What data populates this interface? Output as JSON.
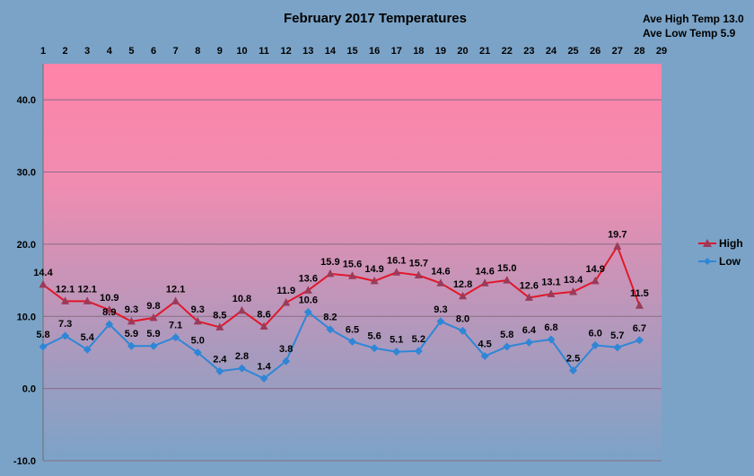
{
  "chart_data": {
    "type": "line",
    "title": "February 2017 Temperatures",
    "annotations": [
      "Ave High Temp 13.0",
      "Ave Low Temp 5.9"
    ],
    "x": [
      1,
      2,
      3,
      4,
      5,
      6,
      7,
      8,
      9,
      10,
      11,
      12,
      13,
      14,
      15,
      16,
      17,
      18,
      19,
      20,
      21,
      22,
      23,
      24,
      25,
      26,
      27,
      28
    ],
    "x_ticks": [
      "1",
      "2",
      "3",
      "4",
      "5",
      "6",
      "7",
      "8",
      "9",
      "10",
      "11",
      "12",
      "13",
      "14",
      "15",
      "16",
      "17",
      "18",
      "19",
      "20",
      "21",
      "22",
      "23",
      "24",
      "25",
      "26",
      "27",
      "28",
      "29"
    ],
    "xlim": [
      1,
      29
    ],
    "ylim": [
      -10,
      45
    ],
    "y_ticks": [
      "-10.0",
      "0.0",
      "10.0",
      "20.0",
      "30.0",
      "40.0"
    ],
    "grid": true,
    "legend_position": "right",
    "series": [
      {
        "name": "High",
        "color": "#e0182a",
        "marker": "triangle",
        "values": [
          14.4,
          12.1,
          12.1,
          10.9,
          9.3,
          9.8,
          12.1,
          9.3,
          8.5,
          10.8,
          8.6,
          11.9,
          13.6,
          15.9,
          15.6,
          14.9,
          16.1,
          15.7,
          14.6,
          12.8,
          14.6,
          15.0,
          12.6,
          13.1,
          13.4,
          14.9,
          19.7,
          11.5
        ],
        "labels": [
          "14.4",
          "12.1",
          "12.1",
          "10.9",
          "9.3",
          "9.8",
          "12.1",
          "9.3",
          "8.5",
          "10.8",
          "8.6",
          "11.9",
          "13.6",
          "15.9",
          "15.6",
          "14.9",
          "16.1",
          "15.7",
          "14.6",
          "12.8",
          "14.6",
          "15.0",
          "12.6",
          "13.1",
          "13.4",
          "14.9",
          "19.7",
          "11.5"
        ]
      },
      {
        "name": "Low",
        "color": "#2f86d6",
        "marker": "diamond",
        "values": [
          5.8,
          7.3,
          5.4,
          8.9,
          5.9,
          5.9,
          7.1,
          5.0,
          2.4,
          2.8,
          1.4,
          3.8,
          10.6,
          8.2,
          6.5,
          5.6,
          5.1,
          5.2,
          9.3,
          8.0,
          4.5,
          5.8,
          6.4,
          6.8,
          2.5,
          6.0,
          5.7,
          6.7
        ],
        "labels": [
          "5.8",
          "7.3",
          "5.4",
          "8.9",
          "5.9",
          "5.9",
          "7.1",
          "5.0",
          "2.4",
          "2.8",
          "1.4",
          "3.8",
          "10.6",
          "8.2",
          "6.5",
          "5.6",
          "5.1",
          "5.2",
          "9.3",
          "8.0",
          "4.5",
          "5.8",
          "6.4",
          "6.8",
          "2.5",
          "6.0",
          "5.7",
          "6.7"
        ]
      }
    ],
    "colors": {
      "background": "#7ba3c7",
      "plot_top": "#ff83a9",
      "plot_bottom": "#7ba3c7"
    }
  }
}
